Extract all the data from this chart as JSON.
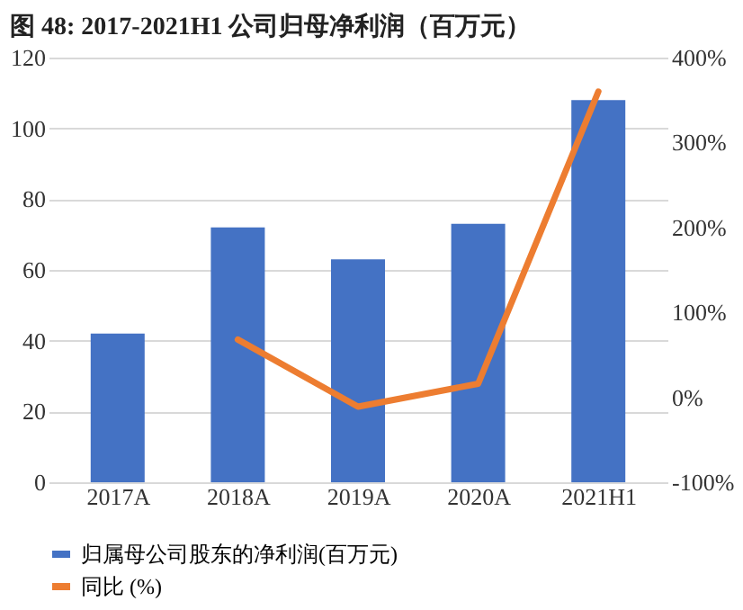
{
  "chart_data": {
    "type": "bar",
    "title": "图  48:  2017-2021H1 公司归母净利润（百万元）",
    "categories": [
      "2017A",
      "2018A",
      "2019A",
      "2020A",
      "2021H1"
    ],
    "series": [
      {
        "name": "归属母公司股东的净利润(百万元)",
        "color": "#4472c4",
        "values": [
          42,
          72,
          63,
          73,
          108
        ]
      },
      {
        "name": "同比 (%)",
        "type": "line",
        "axis": "y2",
        "color": "#ed7d31",
        "values": [
          null,
          68,
          -11,
          16,
          360
        ]
      }
    ],
    "ylim": [
      0,
      120
    ],
    "yticks": [
      0,
      20,
      40,
      60,
      80,
      100,
      120
    ],
    "y2lim": [
      -100,
      400
    ],
    "y2ticks": [
      {
        "value": -100,
        "label": "-100%"
      },
      {
        "value": 0,
        "label": "0%"
      },
      {
        "value": 100,
        "label": "100%"
      },
      {
        "value": 200,
        "label": "200%"
      },
      {
        "value": 300,
        "label": "300%"
      },
      {
        "value": 400,
        "label": "400%"
      }
    ],
    "grid": "y",
    "legend": "bottom",
    "marker": "none"
  }
}
